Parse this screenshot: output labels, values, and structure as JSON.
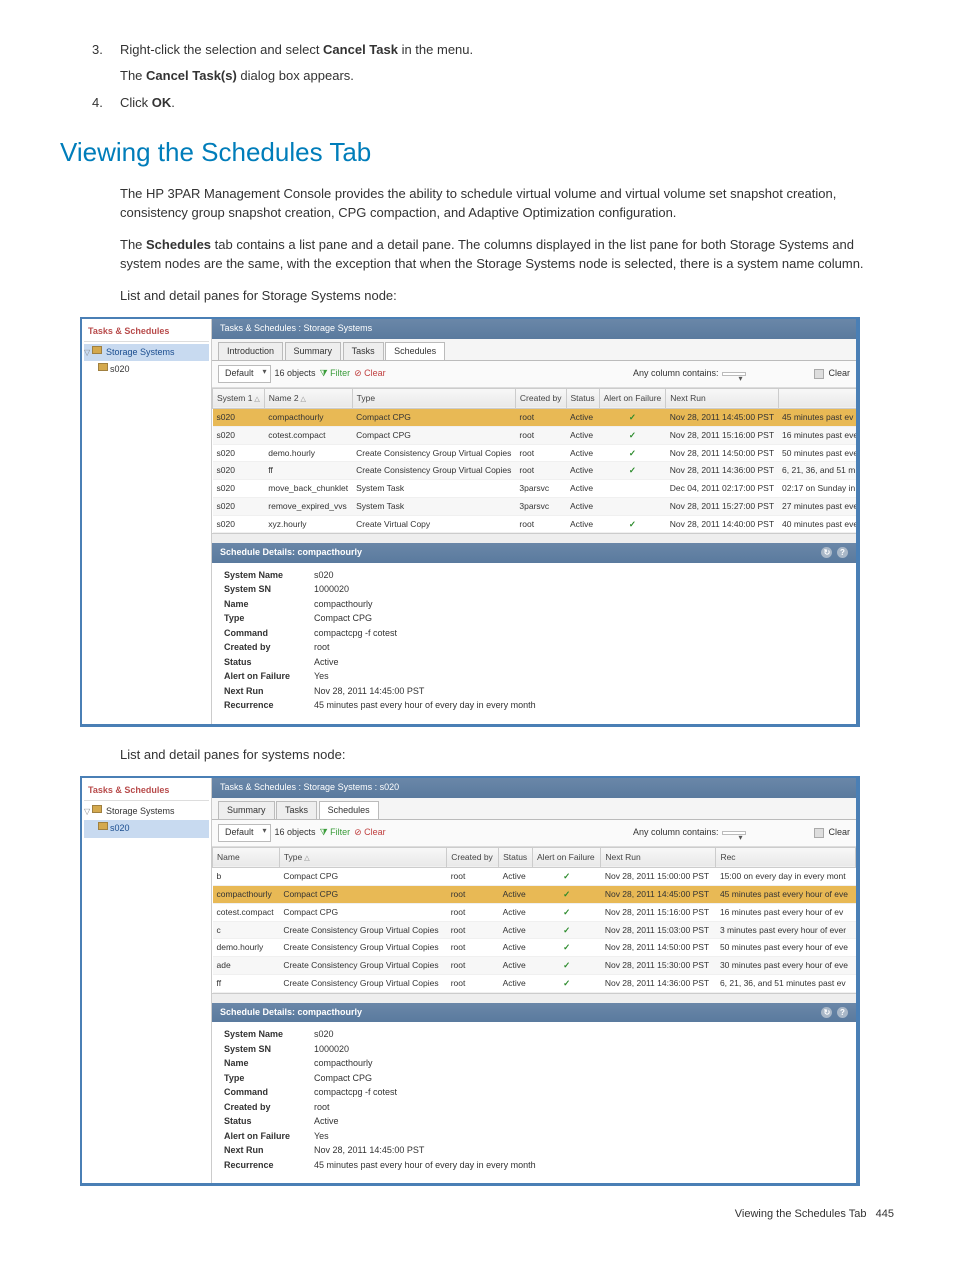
{
  "steps": [
    {
      "num": "3.",
      "text_a": "Right-click the selection and select ",
      "bold": "Cancel Task",
      "text_b": " in the menu.",
      "sub_a": "The ",
      "sub_bold": "Cancel Task(s)",
      "sub_b": " dialog box appears."
    },
    {
      "num": "4.",
      "text_a": "Click ",
      "bold": "OK",
      "text_b": "."
    }
  ],
  "section_title": "Viewing the Schedules Tab",
  "para1": "The HP 3PAR Management Console provides the ability to schedule virtual volume and virtual volume set snapshot creation, consistency group snapshot creation, CPG compaction, and Adaptive Optimization configuration.",
  "para2_a": "The ",
  "para2_bold": "Schedules",
  "para2_b": " tab contains a list pane and a detail pane. The columns displayed in the list pane for both Storage Systems and system nodes are the same, with the exception that when the Storage Systems node is selected, there is a system name column.",
  "caption1": "List and detail panes for Storage Systems node:",
  "caption2": "List and detail panes for systems node:",
  "footer_text": "Viewing the Schedules Tab",
  "footer_page": "445",
  "nav": {
    "title": "Tasks & Schedules",
    "root": "Storage Systems",
    "child": "s020"
  },
  "shot1": {
    "breadcrumb": "Tasks & Schedules : Storage Systems",
    "tabs": [
      "Introduction",
      "Summary",
      "Tasks",
      "Schedules"
    ],
    "active_tab": 3,
    "filter_default": "Default",
    "filter_count": "16 objects",
    "filter_link": "Filter",
    "clear_link": "Clear",
    "any_col": "Any column contains:",
    "export_label": "Clear",
    "headers": [
      "System",
      "Name",
      "Type",
      "Created by",
      "Status",
      "Alert on Failure",
      "Next Run",
      ""
    ],
    "rows": [
      [
        "s020",
        "compacthourly",
        "Compact CPG",
        "root",
        "Active",
        "✓",
        "Nov 28, 2011 14:45:00 PST",
        "45 minutes past ev"
      ],
      [
        "s020",
        "cotest.compact",
        "Compact CPG",
        "root",
        "Active",
        "✓",
        "Nov 28, 2011 15:16:00 PST",
        "16 minutes past eve"
      ],
      [
        "s020",
        "demo.hourly",
        "Create Consistency Group Virtual Copies",
        "root",
        "Active",
        "✓",
        "Nov 28, 2011 14:50:00 PST",
        "50 minutes past eve"
      ],
      [
        "s020",
        "ff",
        "Create Consistency Group Virtual Copies",
        "root",
        "Active",
        "✓",
        "Nov 28, 2011 14:36:00 PST",
        "6, 21, 36, and 51 m"
      ],
      [
        "s020",
        "move_back_chunklet",
        "System Task",
        "3parsvc",
        "Active",
        "",
        "Dec 04, 2011 02:17:00 PST",
        "02:17 on Sunday in"
      ],
      [
        "s020",
        "remove_expired_vvs",
        "System Task",
        "3parsvc",
        "Active",
        "",
        "Nov 28, 2011 15:27:00 PST",
        "27 minutes past eve"
      ],
      [
        "s020",
        "xyz.hourly",
        "Create Virtual Copy",
        "root",
        "Active",
        "✓",
        "Nov 28, 2011 14:40:00 PST",
        "40 minutes past eve"
      ]
    ],
    "details_title": "Schedule Details: compacthourly",
    "details": [
      [
        "System Name",
        "s020"
      ],
      [
        "System SN",
        "1000020"
      ],
      [
        "Name",
        "compacthourly"
      ],
      [
        "Type",
        "Compact CPG"
      ],
      [
        "Command",
        "compactcpg -f cotest"
      ],
      [
        "Created by",
        "root"
      ],
      [
        "Status",
        "Active"
      ],
      [
        "Alert on Failure",
        "Yes"
      ],
      [
        "Next Run",
        "Nov 28, 2011 14:45:00 PST"
      ],
      [
        "Recurrence",
        "45 minutes past every hour of every day in every month"
      ]
    ]
  },
  "shot2": {
    "breadcrumb": "Tasks & Schedules : Storage Systems : s020",
    "tabs": [
      "Summary",
      "Tasks",
      "Schedules"
    ],
    "active_tab": 2,
    "filter_default": "Default",
    "filter_count": "16 objects",
    "filter_link": "Filter",
    "clear_link": "Clear",
    "any_col": "Any column contains:",
    "export_label": "Clear",
    "headers": [
      "Name",
      "Type",
      "Created by",
      "Status",
      "Alert on Failure",
      "Next Run",
      "Rec"
    ],
    "rows": [
      [
        "b",
        "Compact CPG",
        "root",
        "Active",
        "✓",
        "Nov 28, 2011 15:00:00 PST",
        "15:00 on every day in every mont"
      ],
      [
        "compacthourly",
        "Compact CPG",
        "root",
        "Active",
        "✓",
        "Nov 28, 2011 14:45:00 PST",
        "45 minutes past every hour of eve"
      ],
      [
        "cotest.compact",
        "Compact CPG",
        "root",
        "Active",
        "✓",
        "Nov 28, 2011 15:16:00 PST",
        "16 minutes past every hour of ev"
      ],
      [
        "c",
        "Create Consistency Group Virtual Copies",
        "root",
        "Active",
        "✓",
        "Nov 28, 2011 15:03:00 PST",
        "3 minutes past every hour of ever"
      ],
      [
        "demo.hourly",
        "Create Consistency Group Virtual Copies",
        "root",
        "Active",
        "✓",
        "Nov 28, 2011 14:50:00 PST",
        "50 minutes past every hour of eve"
      ],
      [
        "ade",
        "Create Consistency Group Virtual Copies",
        "root",
        "Active",
        "✓",
        "Nov 28, 2011 15:30:00 PST",
        "30 minutes past every hour of eve"
      ],
      [
        "ff",
        "Create Consistency Group Virtual Copies",
        "root",
        "Active",
        "✓",
        "Nov 28, 2011 14:36:00 PST",
        "6, 21, 36, and 51 minutes past ev"
      ]
    ],
    "details_title": "Schedule Details: compacthourly",
    "details": [
      [
        "System Name",
        "s020"
      ],
      [
        "System SN",
        "1000020"
      ],
      [
        "Name",
        "compacthourly"
      ],
      [
        "Type",
        "Compact CPG"
      ],
      [
        "Command",
        "compactcpg -f cotest"
      ],
      [
        "Created by",
        "root"
      ],
      [
        "Status",
        "Active"
      ],
      [
        "Alert on Failure",
        "Yes"
      ],
      [
        "Next Run",
        "Nov 28, 2011 14:45:00 PST"
      ],
      [
        "Recurrence",
        "45 minutes past every hour of every day in every month"
      ]
    ]
  }
}
